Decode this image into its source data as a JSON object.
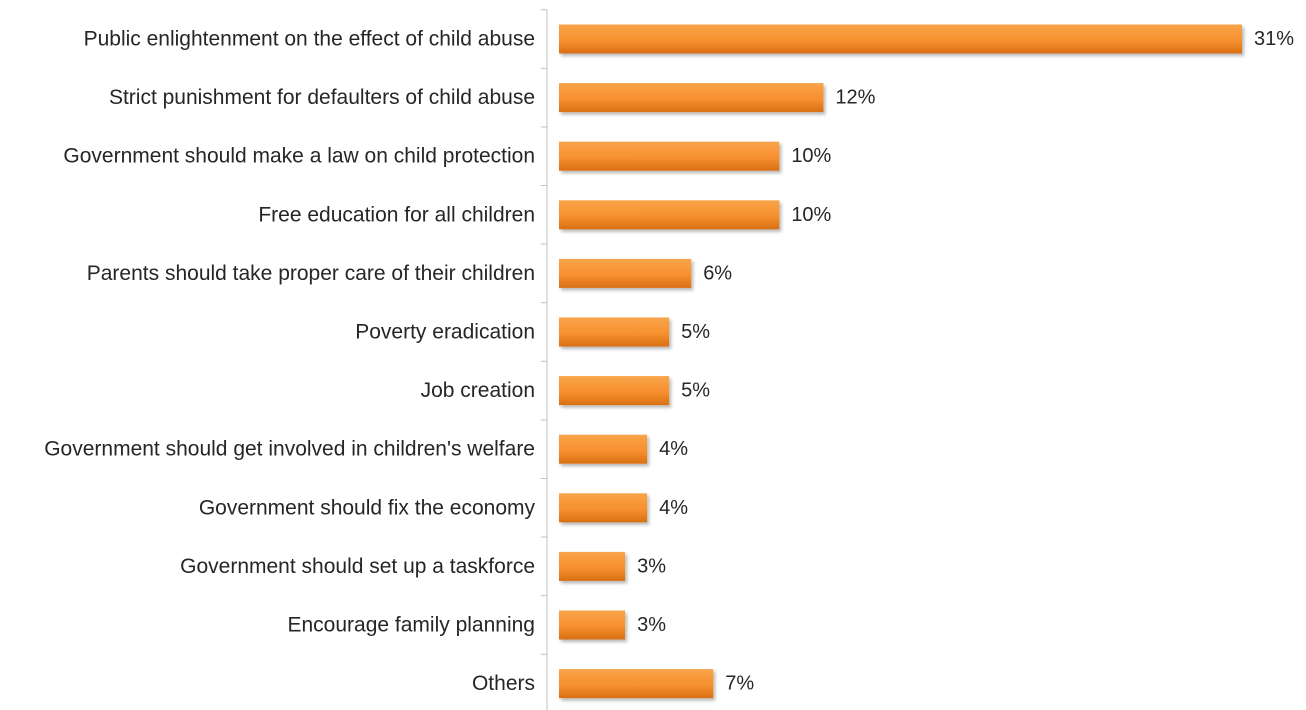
{
  "chart_data": {
    "type": "bar",
    "orientation": "horizontal",
    "categories": [
      "Public enlightenment on the effect of child abuse",
      "Strict punishment for defaulters of child abuse",
      "Government should make a law on child protection",
      "Free education for all children",
      "Parents should take proper care of their children",
      "Poverty eradication",
      "Job creation",
      "Government should get involved in children's welfare",
      "Government should fix the economy",
      "Government should set up a taskforce",
      "Encourage family planning",
      "Others"
    ],
    "values": [
      31,
      12,
      10,
      10,
      6,
      5,
      5,
      4,
      4,
      3,
      3,
      7
    ],
    "value_labels": [
      "31%",
      "12%",
      "10%",
      "10%",
      "6%",
      "5%",
      "5%",
      "4%",
      "4%",
      "3%",
      "3%",
      "7%"
    ],
    "unit": "%",
    "xlim": [
      0,
      31
    ],
    "grid": false,
    "legend": "none",
    "colors": {
      "bar_top": "#F8A44A",
      "bar_mid": "#F7902F",
      "bar_bottom": "#D96F14",
      "axis": "#BFBFBF",
      "text": "#262626"
    }
  }
}
